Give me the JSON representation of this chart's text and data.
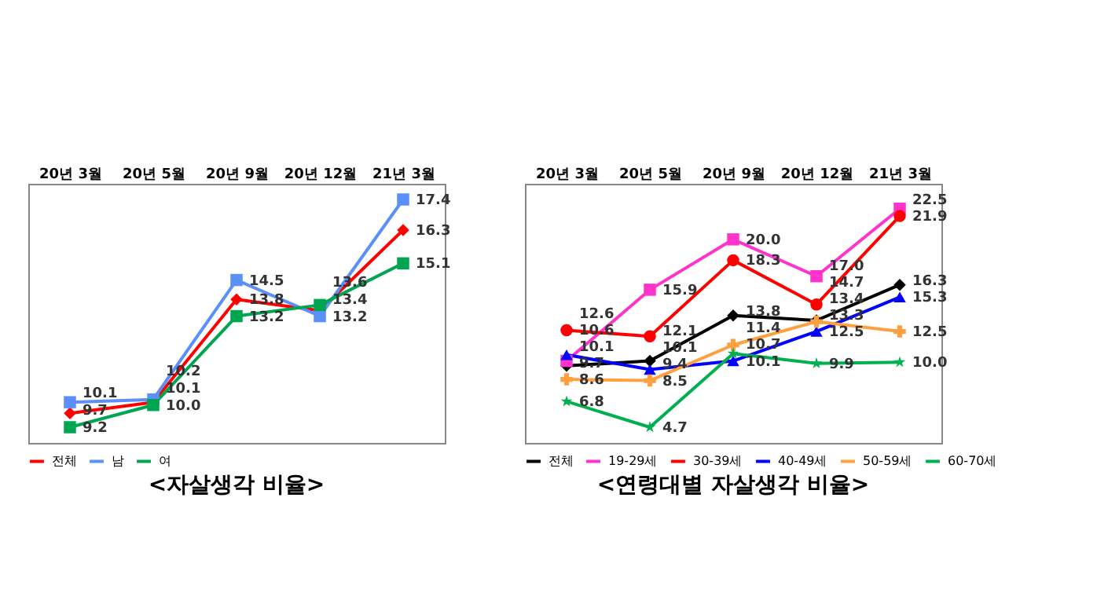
{
  "chart_data": [
    {
      "type": "line",
      "title": "<자살생각 비율>",
      "categories": [
        "20년 3월",
        "20년 5월",
        "20년 9월",
        "20년 12월",
        "21년 3월"
      ],
      "legend": "bottom",
      "tick_labels": "x",
      "series": [
        {
          "name": "전체",
          "color": "#ff0000",
          "marker": "diamond",
          "values": [
            9.7,
            10.1,
            13.8,
            13.4,
            16.3
          ],
          "value_labels": [
            "9.7",
            "10.1",
            "13.8",
            "13.4",
            "16.3"
          ]
        },
        {
          "name": "남",
          "color": "#5b8ff9",
          "marker": "square",
          "values": [
            10.1,
            10.2,
            14.5,
            13.2,
            17.4
          ],
          "value_labels": [
            "10.1",
            "10.2",
            "14.5",
            "13.2",
            "17.4"
          ]
        },
        {
          "name": "여",
          "color": "#00a550",
          "marker": "square",
          "values": [
            9.2,
            10.0,
            13.2,
            13.6,
            15.1
          ],
          "value_labels": [
            "9.2",
            "10.0",
            "13.2",
            "13.6",
            "15.1"
          ]
        }
      ]
    },
    {
      "type": "line",
      "title": "<연령대별 자살생각 비율>",
      "categories": [
        "20년 3월",
        "20년 5월",
        "20년 9월",
        "20년 12월",
        "21년 3월"
      ],
      "legend": "bottom",
      "tick_labels": "x",
      "series": [
        {
          "name": "전체",
          "color": "#000000",
          "marker": "diamond",
          "values": [
            9.7,
            10.1,
            13.8,
            13.4,
            16.3
          ],
          "value_labels": [
            "9.7",
            "10.1",
            "13.8",
            "13.4",
            "16.3"
          ]
        },
        {
          "name": "19-29세",
          "color": "#ff33cc",
          "marker": "square",
          "values": [
            10.1,
            15.9,
            20.0,
            17.0,
            22.5
          ],
          "value_labels": [
            "10.1",
            "15.9",
            "20.0",
            "17.0",
            "22.5"
          ]
        },
        {
          "name": "30-39세",
          "color": "#ff0000",
          "marker": "circle",
          "values": [
            12.6,
            12.1,
            18.3,
            14.7,
            21.9
          ],
          "value_labels": [
            "12.6",
            "12.1",
            "18.3",
            "14.7",
            "21.9"
          ]
        },
        {
          "name": "40-49세",
          "color": "#0000ff",
          "marker": "triangle",
          "values": [
            10.6,
            9.4,
            10.1,
            12.5,
            15.3
          ],
          "value_labels": [
            "10.6",
            "9.4",
            "10.1",
            "12.5",
            "15.3"
          ]
        },
        {
          "name": "50-59세",
          "color": "#ffa040",
          "marker": "cross",
          "values": [
            8.6,
            8.5,
            11.4,
            13.3,
            12.5
          ],
          "value_labels": [
            "8.6",
            "8.5",
            "11.4",
            "13.3",
            "12.5"
          ]
        },
        {
          "name": "60-70세",
          "color": "#00b050",
          "marker": "star",
          "values": [
            6.8,
            4.7,
            10.7,
            9.9,
            10.0
          ],
          "value_labels": [
            "6.8",
            "4.7",
            "10.7",
            "9.9",
            "10.0"
          ]
        }
      ]
    }
  ]
}
